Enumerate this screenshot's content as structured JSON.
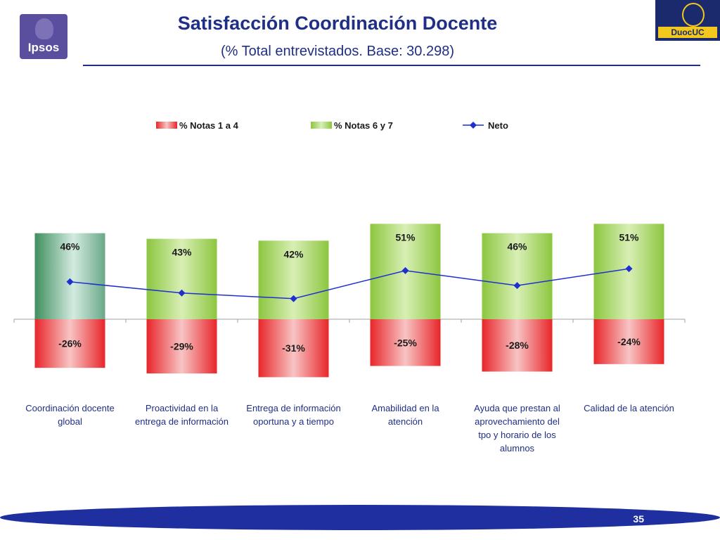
{
  "header": {
    "title": "Satisfacción Coordinación Docente",
    "subtitle": "(% Total entrevistados. Base: 30.298)",
    "left_logo_text": "Ipsos",
    "right_logo_text": "DuocUC"
  },
  "footer": {
    "page_number": "35"
  },
  "colors": {
    "title": "#1f2f86",
    "positive_bar": "#8cc63f",
    "positive_bar_highlight": "#4f9d6a",
    "negative_bar": "#e8262a",
    "line": "#1f2fd0"
  },
  "chart_data": {
    "type": "bar",
    "categories": [
      "Coordinación docente global",
      "Proactividad en la entrega de información",
      "Entrega de información oportuna y a tiempo",
      "Amabilidad en la atención",
      "Ayuda que prestan al aprovechamiento del tpo y horario de los alumnos",
      "Calidad de la atención"
    ],
    "series": [
      {
        "name": "% Notas 1 a 4",
        "kind": "bar",
        "values": [
          -26,
          -29,
          -31,
          -25,
          -28,
          -24
        ],
        "labels": [
          "-26%",
          "-29%",
          "-31%",
          "-25%",
          "-28%",
          "-24%"
        ]
      },
      {
        "name": "% Notas 6 y 7",
        "kind": "bar",
        "values": [
          46,
          43,
          42,
          51,
          46,
          51
        ],
        "labels": [
          "46%",
          "43%",
          "42%",
          "51%",
          "46%",
          "51%"
        ]
      },
      {
        "name": "Neto",
        "kind": "line",
        "values": [
          20,
          14,
          11,
          26,
          18,
          27
        ]
      }
    ],
    "legend_position": "top",
    "stacked": true
  }
}
